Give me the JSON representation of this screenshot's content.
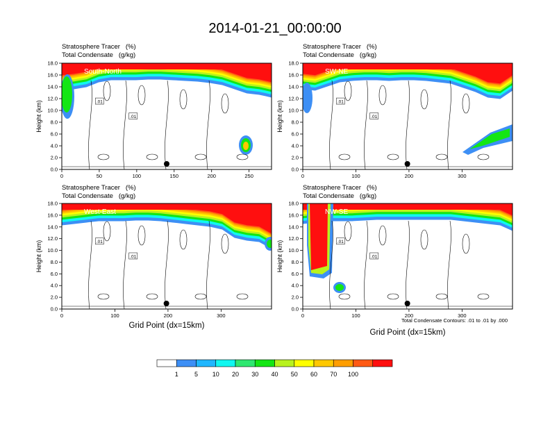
{
  "title": "2014-01-21_00:00:00",
  "panel_title_line1": "Stratosphere Tracer   (%)",
  "panel_title_line2": "Total Condensate   (g/kg)",
  "ylabel": "Height (km)",
  "xlabel": "Grid Point (dx=15km)",
  "contour_note": "Total Condensate Contours: .01 to .01 by .000",
  "contour_label": ".01",
  "colorbar": {
    "levels": [
      "1",
      "5",
      "10",
      "20",
      "30",
      "40",
      "50",
      "60",
      "70",
      "100"
    ],
    "colors": [
      "#ffffff",
      "#3d8ff5",
      "#1fb6ff",
      "#10f7f0",
      "#2ee870",
      "#14e614",
      "#b8f21e",
      "#ffff00",
      "#ffc800",
      "#ff9e00",
      "#ff5a14",
      "#ff0f0f"
    ]
  },
  "chart_data": [
    {
      "type": "heatmap",
      "label": "South-North",
      "ylim": [
        0,
        18
      ],
      "xlim": [
        0,
        280
      ],
      "xticks": [
        0,
        50,
        100,
        150,
        200,
        250
      ],
      "yticks": [
        "0.0",
        "2.0",
        "4.0",
        "6.0",
        "8.0",
        "10.0",
        "12.0",
        "14.0",
        "16.0",
        "18.0"
      ],
      "marker_x": 140
    },
    {
      "type": "heatmap",
      "label": "SW-NE",
      "ylim": [
        0,
        18
      ],
      "xlim": [
        0,
        395
      ],
      "xticks": [
        0,
        100,
        200,
        300
      ],
      "yticks": [
        "0.0",
        "2.0",
        "4.0",
        "6.0",
        "8.0",
        "10.0",
        "12.0",
        "14.0",
        "16.0",
        "18.0"
      ],
      "marker_x": 197
    },
    {
      "type": "heatmap",
      "label": "West-East",
      "ylim": [
        0,
        18
      ],
      "xlim": [
        0,
        395
      ],
      "xticks": [
        0,
        100,
        200,
        300
      ],
      "yticks": [
        "0.0",
        "2.0",
        "4.0",
        "6.0",
        "8.0",
        "10.0",
        "12.0",
        "14.0",
        "16.0",
        "18.0"
      ],
      "marker_x": 197
    },
    {
      "type": "heatmap",
      "label": "NW-SE",
      "ylim": [
        0,
        18
      ],
      "xlim": [
        0,
        395
      ],
      "xticks": [
        0,
        100,
        200,
        300
      ],
      "yticks": [
        "0.0",
        "2.0",
        "4.0",
        "6.0",
        "8.0",
        "10.0",
        "12.0",
        "14.0",
        "16.0",
        "18.0"
      ],
      "marker_x": 197
    }
  ]
}
